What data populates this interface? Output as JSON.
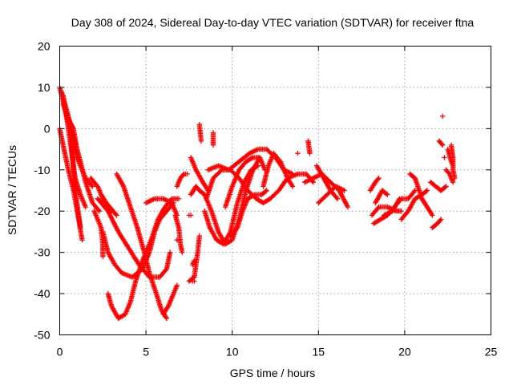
{
  "chart_data": {
    "type": "scatter",
    "title": "Day 308 of 2024, Sidereal Day-to-day VTEC variation (SDTVAR) for receiver ftna",
    "xlabel": "GPS time / hours",
    "ylabel": "SDTVAR / TECUs",
    "xlim": [
      0,
      25
    ],
    "ylim": [
      -50,
      20
    ],
    "xticks": [
      0,
      5,
      10,
      15,
      20,
      25
    ],
    "yticks": [
      -50,
      -40,
      -30,
      -20,
      -10,
      0,
      10,
      20
    ],
    "grid": true,
    "marker": "+",
    "color": "#ff0000",
    "tracks": [
      {
        "name": "track-1",
        "points": [
          [
            0,
            10
          ],
          [
            0.3,
            5
          ],
          [
            0.6,
            0
          ],
          [
            0.8,
            -10
          ],
          [
            1.0,
            -18
          ],
          [
            1.2,
            -24
          ]
        ]
      },
      {
        "name": "track-2",
        "points": [
          [
            0,
            0
          ],
          [
            0.2,
            -4
          ],
          [
            0.5,
            -10
          ],
          [
            0.8,
            -15
          ],
          [
            1.1,
            -22
          ],
          [
            1.3,
            -27
          ]
        ]
      },
      {
        "name": "track-3",
        "points": [
          [
            0.1,
            9
          ],
          [
            0.5,
            3
          ],
          [
            0.8,
            -2
          ],
          [
            1.2,
            -8
          ],
          [
            1.5,
            -13
          ],
          [
            1.9,
            -18
          ],
          [
            2.3,
            -20
          ]
        ]
      },
      {
        "name": "track-4",
        "points": [
          [
            0.2,
            8
          ],
          [
            0.5,
            0
          ],
          [
            0.7,
            -6
          ],
          [
            0.9,
            -12
          ],
          [
            1.2,
            -16
          ],
          [
            1.5,
            -19
          ]
        ]
      },
      {
        "name": "track-5",
        "points": [
          [
            0.2,
            6
          ],
          [
            0.5,
            2
          ],
          [
            0.8,
            -3
          ],
          [
            1.0,
            -7
          ],
          [
            1.5,
            -12
          ],
          [
            1.9,
            -14
          ]
        ]
      },
      {
        "name": "track-6",
        "points": [
          [
            0.4,
            3
          ],
          [
            0.8,
            0
          ],
          [
            1.0,
            -5
          ],
          [
            1.2,
            -9
          ]
        ]
      },
      {
        "name": "track-7",
        "points": [
          [
            2.2,
            -17
          ],
          [
            2.8,
            -20
          ],
          [
            3.4,
            -25
          ],
          [
            4.0,
            -29
          ],
          [
            4.6,
            -33
          ],
          [
            5.2,
            -36
          ],
          [
            5.8,
            -36
          ],
          [
            6.2,
            -34
          ],
          [
            6.4,
            -30
          ]
        ]
      },
      {
        "name": "track-8",
        "points": [
          [
            2.5,
            -25
          ],
          [
            2.8,
            -30
          ],
          [
            3.2,
            -33
          ],
          [
            3.6,
            -35
          ],
          [
            4.2,
            -36
          ],
          [
            4.8,
            -34
          ],
          [
            5.2,
            -30
          ],
          [
            5.5,
            -25
          ],
          [
            5.8,
            -22
          ],
          [
            6.2,
            -20
          ],
          [
            6.6,
            -18
          ]
        ]
      },
      {
        "name": "track-9",
        "points": [
          [
            3.3,
            -11
          ],
          [
            3.7,
            -14
          ],
          [
            4.1,
            -19
          ],
          [
            4.5,
            -24
          ],
          [
            4.9,
            -30
          ],
          [
            5.2,
            -35
          ],
          [
            5.6,
            -40
          ],
          [
            5.9,
            -44
          ],
          [
            6.2,
            -46
          ]
        ]
      },
      {
        "name": "track-10",
        "points": [
          [
            2.8,
            -40
          ],
          [
            3.0,
            -43
          ],
          [
            3.4,
            -46
          ],
          [
            3.8,
            -45
          ],
          [
            4.1,
            -42
          ],
          [
            4.4,
            -37
          ],
          [
            4.8,
            -32
          ],
          [
            5.3,
            -27
          ],
          [
            5.7,
            -22
          ],
          [
            6.1,
            -19
          ],
          [
            6.5,
            -17
          ],
          [
            6.9,
            -17
          ]
        ]
      },
      {
        "name": "track-11",
        "points": [
          [
            6.0,
            -45
          ],
          [
            6.3,
            -43
          ],
          [
            6.6,
            -40
          ],
          [
            6.8,
            -38
          ]
        ]
      },
      {
        "name": "track-12",
        "points": [
          [
            2.0,
            -20
          ],
          [
            2.4,
            -24
          ],
          [
            2.5,
            -28
          ],
          [
            2.5,
            -31
          ]
        ]
      },
      {
        "name": "track-13",
        "points": [
          [
            2.4,
            -16
          ],
          [
            2.7,
            -18
          ],
          [
            3.1,
            -20
          ],
          [
            3.3,
            -21
          ]
        ]
      },
      {
        "name": "track-14",
        "points": [
          [
            1.8,
            -12
          ],
          [
            2.2,
            -14
          ],
          [
            2.6,
            -18
          ],
          [
            3.0,
            -20
          ]
        ]
      },
      {
        "name": "track-15",
        "points": [
          [
            5.0,
            -18
          ],
          [
            5.5,
            -17
          ],
          [
            6.0,
            -17
          ],
          [
            6.5,
            -18
          ],
          [
            6.8,
            -21
          ]
        ]
      },
      {
        "name": "track-16",
        "points": [
          [
            6.7,
            -21
          ],
          [
            6.9,
            -24
          ],
          [
            7.0,
            -28
          ],
          [
            7.1,
            -30
          ]
        ]
      },
      {
        "name": "track-17",
        "points": [
          [
            6.8,
            -14
          ],
          [
            7.0,
            -12
          ],
          [
            7.2,
            -11
          ]
        ]
      },
      {
        "name": "track-18",
        "points": [
          [
            7.5,
            -37
          ],
          [
            7.8,
            -36
          ],
          [
            8.0,
            -30
          ],
          [
            8.1,
            -26
          ]
        ]
      },
      {
        "name": "track-19",
        "points": [
          [
            7.6,
            -16
          ],
          [
            7.9,
            -14
          ],
          [
            8.1,
            -15
          ]
        ]
      },
      {
        "name": "track-20",
        "points": [
          [
            8.1,
            -15
          ],
          [
            8.4,
            -16
          ],
          [
            8.8,
            -20
          ],
          [
            9.2,
            -25
          ],
          [
            9.6,
            -28
          ],
          [
            10.0,
            -27
          ],
          [
            10.4,
            -22
          ],
          [
            10.8,
            -15
          ],
          [
            11.2,
            -10
          ],
          [
            11.6,
            -7
          ]
        ]
      },
      {
        "name": "track-21",
        "points": [
          [
            8.4,
            -20
          ],
          [
            8.7,
            -24
          ],
          [
            9.1,
            -27
          ],
          [
            9.5,
            -28
          ],
          [
            9.9,
            -25
          ],
          [
            10.3,
            -18
          ],
          [
            10.7,
            -13
          ],
          [
            11.1,
            -10
          ],
          [
            11.5,
            -9
          ]
        ]
      },
      {
        "name": "track-22",
        "points": [
          [
            8.5,
            -17
          ],
          [
            8.9,
            -12
          ],
          [
            9.4,
            -10
          ],
          [
            9.9,
            -10
          ],
          [
            10.4,
            -12
          ],
          [
            10.9,
            -15
          ],
          [
            11.4,
            -17
          ],
          [
            11.8,
            -18
          ],
          [
            12.2,
            -17
          ],
          [
            12.7,
            -15
          ],
          [
            13.2,
            -12
          ],
          [
            13.8,
            -11
          ],
          [
            14.3,
            -11
          ],
          [
            14.7,
            -13
          ]
        ]
      },
      {
        "name": "track-23",
        "points": [
          [
            8.6,
            -10
          ],
          [
            9.2,
            -9
          ],
          [
            9.8,
            -10
          ],
          [
            10.4,
            -8
          ],
          [
            11.0,
            -6
          ],
          [
            11.5,
            -5
          ],
          [
            12.0,
            -5
          ],
          [
            12.5,
            -7
          ],
          [
            13.0,
            -10
          ],
          [
            13.5,
            -11
          ]
        ]
      },
      {
        "name": "track-24",
        "points": [
          [
            9.6,
            -19
          ],
          [
            10.0,
            -14
          ],
          [
            10.4,
            -10
          ],
          [
            10.8,
            -8
          ],
          [
            11.2,
            -7
          ],
          [
            11.6,
            -7
          ],
          [
            11.9,
            -10
          ]
        ]
      },
      {
        "name": "track-25",
        "points": [
          [
            9.9,
            -26
          ],
          [
            10.3,
            -24
          ],
          [
            10.6,
            -20
          ],
          [
            10.9,
            -17
          ],
          [
            11.3,
            -16
          ],
          [
            11.7,
            -16
          ],
          [
            12.0,
            -15
          ]
        ]
      },
      {
        "name": "track-26",
        "points": [
          [
            11.8,
            -14
          ],
          [
            12.1,
            -9
          ],
          [
            12.4,
            -6
          ],
          [
            12.8,
            -8
          ],
          [
            13.2,
            -12
          ],
          [
            13.5,
            -14
          ]
        ]
      },
      {
        "name": "track-27",
        "points": [
          [
            7.6,
            -7
          ],
          [
            7.9,
            -10
          ],
          [
            8.3,
            -13
          ],
          [
            8.6,
            -15
          ]
        ]
      },
      {
        "name": "track-28",
        "points": [
          [
            8.1,
            1
          ],
          [
            8.2,
            -3
          ]
        ]
      },
      {
        "name": "track-29",
        "points": [
          [
            8.9,
            -1
          ],
          [
            8.9,
            -4
          ]
        ]
      },
      {
        "name": "track-30",
        "points": [
          [
            14.4,
            -3
          ],
          [
            14.5,
            -6
          ]
        ]
      },
      {
        "name": "track-31",
        "points": [
          [
            14.2,
            -13
          ],
          [
            14.7,
            -12
          ],
          [
            15.2,
            -11
          ],
          [
            15.7,
            -13
          ],
          [
            16.2,
            -15
          ],
          [
            16.7,
            -19
          ]
        ]
      },
      {
        "name": "track-32",
        "points": [
          [
            14.9,
            -9
          ],
          [
            15.3,
            -12
          ],
          [
            15.7,
            -15
          ],
          [
            16.1,
            -17
          ]
        ]
      },
      {
        "name": "track-33",
        "points": [
          [
            15.0,
            -18
          ],
          [
            15.5,
            -16
          ],
          [
            16.0,
            -14
          ],
          [
            16.5,
            -15
          ]
        ]
      },
      {
        "name": "track-34",
        "points": [
          [
            18.1,
            -21
          ],
          [
            18.5,
            -19
          ],
          [
            19.0,
            -19
          ],
          [
            19.5,
            -20
          ],
          [
            19.8,
            -20
          ]
        ]
      },
      {
        "name": "track-35",
        "points": [
          [
            18.2,
            -23
          ],
          [
            18.6,
            -22
          ],
          [
            19.0,
            -21
          ],
          [
            19.4,
            -19
          ],
          [
            19.8,
            -17
          ],
          [
            20.2,
            -17
          ],
          [
            20.6,
            -15
          ]
        ]
      },
      {
        "name": "track-36",
        "points": [
          [
            18.3,
            -18
          ],
          [
            18.7,
            -15
          ],
          [
            19.0,
            -16
          ]
        ]
      },
      {
        "name": "track-37",
        "points": [
          [
            19.8,
            -22
          ],
          [
            20.2,
            -20
          ],
          [
            20.6,
            -17
          ],
          [
            21.0,
            -16
          ],
          [
            21.3,
            -15
          ]
        ]
      },
      {
        "name": "track-38",
        "points": [
          [
            18.0,
            -15
          ],
          [
            18.3,
            -13
          ],
          [
            18.5,
            -12
          ]
        ]
      },
      {
        "name": "track-39",
        "points": [
          [
            18.8,
            -21
          ],
          [
            19.3,
            -20
          ],
          [
            19.7,
            -17
          ]
        ]
      },
      {
        "name": "track-40",
        "points": [
          [
            20.3,
            -11
          ],
          [
            20.6,
            -12
          ],
          [
            21.0,
            -17
          ],
          [
            21.3,
            -19
          ],
          [
            21.6,
            -21
          ]
        ]
      },
      {
        "name": "track-41",
        "points": [
          [
            21.5,
            -13
          ],
          [
            21.8,
            -14
          ],
          [
            22.1,
            -15
          ],
          [
            22.4,
            -14
          ]
        ]
      },
      {
        "name": "track-42",
        "points": [
          [
            21.6,
            -24
          ],
          [
            21.9,
            -23
          ],
          [
            22.1,
            -22
          ]
        ]
      },
      {
        "name": "track-43",
        "points": [
          [
            22.0,
            -3
          ],
          [
            22.2,
            -4
          ]
        ]
      },
      {
        "name": "track-44",
        "points": [
          [
            22.4,
            -10
          ],
          [
            22.6,
            -11
          ],
          [
            22.8,
            -13
          ]
        ]
      },
      {
        "name": "track-45",
        "points": [
          [
            22.7,
            -4
          ],
          [
            22.8,
            -7
          ],
          [
            22.8,
            -10
          ],
          [
            22.9,
            -12
          ]
        ]
      },
      {
        "name": "track-46",
        "points": [
          [
            22.5,
            -5
          ],
          [
            22.7,
            -8
          ],
          [
            22.8,
            -9
          ]
        ]
      },
      {
        "name": "track-47",
        "points": [
          [
            13.8,
            -6
          ],
          [
            13.8,
            -6
          ]
        ]
      },
      {
        "name": "track-48",
        "points": [
          [
            22.2,
            3
          ],
          [
            22.2,
            3
          ]
        ]
      },
      {
        "name": "track-49",
        "points": [
          [
            22.3,
            -7
          ],
          [
            22.3,
            -7
          ]
        ]
      },
      {
        "name": "track-50",
        "points": [
          [
            7.7,
            -37
          ],
          [
            7.8,
            -37
          ]
        ]
      },
      {
        "name": "track-51",
        "points": [
          [
            7.7,
            -33
          ],
          [
            7.8,
            -32
          ]
        ]
      },
      {
        "name": "track-52",
        "points": [
          [
            6.8,
            -27
          ],
          [
            6.8,
            -27
          ]
        ]
      },
      {
        "name": "track-53",
        "points": [
          [
            7.3,
            -11
          ],
          [
            7.4,
            -11
          ]
        ]
      },
      {
        "name": "track-54",
        "points": [
          [
            7.5,
            -21
          ],
          [
            7.6,
            -21
          ]
        ]
      }
    ]
  }
}
